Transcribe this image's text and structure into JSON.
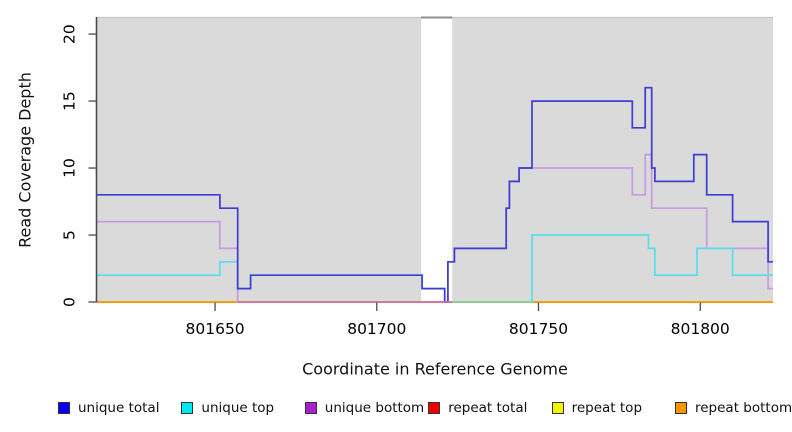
{
  "chart_data": {
    "type": "line",
    "line_style": "step",
    "title": "",
    "xlabel": "Coordinate in Reference Genome",
    "ylabel": "Read Coverage Depth",
    "xlim": [
      801613.5,
      801822.5
    ],
    "ylim": [
      0,
      21.2
    ],
    "xticks": [
      801650,
      801700,
      801750,
      801800
    ],
    "yticks": [
      0,
      5,
      10,
      15,
      20
    ],
    "grid": false,
    "legend_position": "bottom",
    "plot_background": "#DADADA",
    "frame": {
      "top_border_color": "#C6C6C6",
      "gap_top_border_color": "#8F8F8F",
      "axis_color": "#4A4A4A"
    },
    "gap_band": {
      "x_from": 801713.7,
      "x_to": 801723.3,
      "color": "#FFFFFF"
    },
    "series": [
      {
        "name": "unique total",
        "swatch_color": "#0000EE",
        "line_color": "#3D3DD3",
        "points": [
          [
            801613.5,
            8
          ],
          [
            801651.5,
            7
          ],
          [
            801657,
            1
          ],
          [
            801661,
            2
          ],
          [
            801714,
            1
          ],
          [
            801721,
            0
          ],
          [
            801722,
            3
          ],
          [
            801724,
            4
          ],
          [
            801740,
            7
          ],
          [
            801741,
            9
          ],
          [
            801744,
            10
          ],
          [
            801748,
            15
          ],
          [
            801779,
            13
          ],
          [
            801783,
            16
          ],
          [
            801785,
            10
          ],
          [
            801786,
            9
          ],
          [
            801798,
            11
          ],
          [
            801802,
            8
          ],
          [
            801810,
            6
          ],
          [
            801821,
            3
          ]
        ]
      },
      {
        "name": "unique top",
        "swatch_color": "#00E6EE",
        "line_color": "#55DFE9",
        "points": [
          [
            801613.5,
            2
          ],
          [
            801651.5,
            3
          ],
          [
            801657,
            1
          ],
          [
            801661,
            2
          ],
          [
            801714,
            1
          ],
          [
            801721,
            0
          ],
          [
            801748,
            5
          ],
          [
            801784,
            4
          ],
          [
            801786,
            2
          ],
          [
            801799,
            4
          ],
          [
            801810,
            2
          ]
        ]
      },
      {
        "name": "unique bottom",
        "swatch_color": "#A620CC",
        "line_color": "#C79BDF",
        "points": [
          [
            801613.5,
            6
          ],
          [
            801651.5,
            4
          ],
          [
            801657,
            0
          ],
          [
            801722,
            3
          ],
          [
            801724,
            4
          ],
          [
            801740,
            7
          ],
          [
            801741,
            9
          ],
          [
            801744,
            10
          ],
          [
            801779,
            8
          ],
          [
            801783,
            11
          ],
          [
            801785,
            7
          ],
          [
            801802,
            4
          ],
          [
            801821,
            1
          ]
        ]
      },
      {
        "name": "repeat total",
        "swatch_color": "#EE0000",
        "line_color": "#CC2222",
        "points": [
          [
            801613.5,
            0
          ]
        ]
      },
      {
        "name": "repeat top",
        "swatch_color": "#F2F200",
        "line_color": "#E8E800",
        "points": [
          [
            801613.5,
            0
          ]
        ]
      },
      {
        "name": "repeat bottom",
        "swatch_color": "#F59600",
        "line_color": "#F9990A",
        "points": [
          [
            801613.5,
            0
          ]
        ]
      }
    ],
    "draw_order": [
      3,
      4,
      5,
      2,
      1,
      0
    ],
    "baseline_overlays": [
      {
        "x_from": 801657,
        "x_to": 801723.3,
        "color": "#D4719F"
      },
      {
        "x_from": 801723.3,
        "x_to": 801747.7,
        "color": "#90CE90"
      }
    ]
  }
}
